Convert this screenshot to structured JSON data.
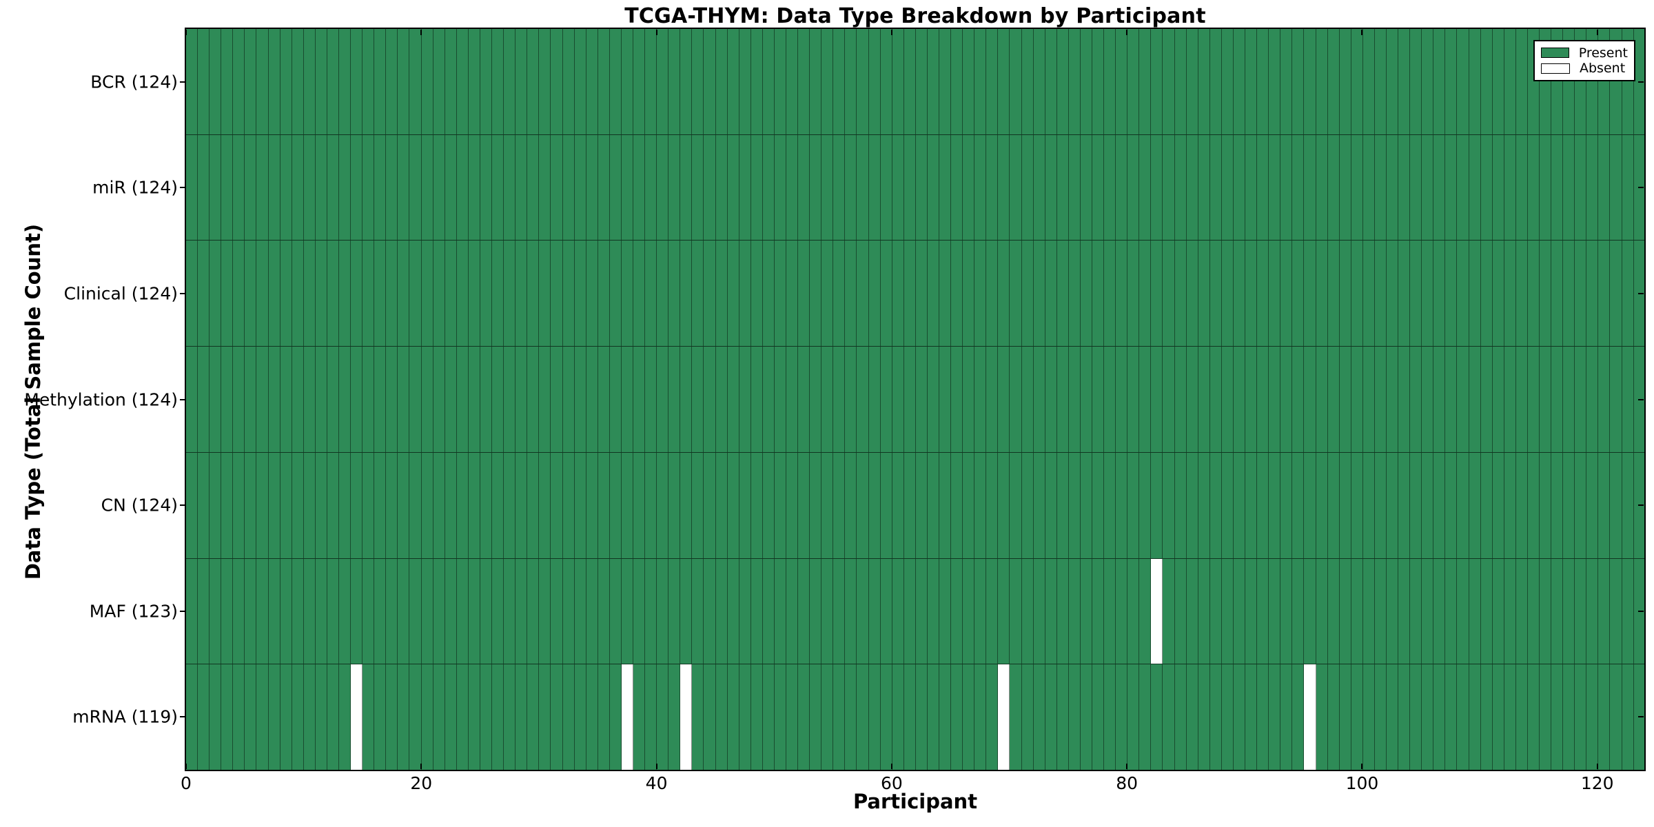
{
  "chart_data": {
    "type": "heatmap",
    "title": "TCGA-THYM: Data Type Breakdown by Participant",
    "xlabel": "Participant",
    "ylabel": "Data Type (Total Sample Count)",
    "x_ticks": [
      0,
      20,
      40,
      60,
      80,
      100,
      120
    ],
    "x_range": [
      0,
      124
    ],
    "participants": 124,
    "present_color": "#2E8B57",
    "absent_color": "#ffffff",
    "grid": "cell-borders",
    "legend_position": "upper-right",
    "rows": [
      {
        "label": "BCR (124)",
        "name": "BCR",
        "total": 124,
        "absent_participants": []
      },
      {
        "label": "miR (124)",
        "name": "miR",
        "total": 124,
        "absent_participants": []
      },
      {
        "label": "Clinical (124)",
        "name": "Clinical",
        "total": 124,
        "absent_participants": []
      },
      {
        "label": "Methylation (124)",
        "name": "Methylation",
        "total": 124,
        "absent_participants": []
      },
      {
        "label": "CN (124)",
        "name": "CN",
        "total": 124,
        "absent_participants": []
      },
      {
        "label": "MAF (123)",
        "name": "MAF",
        "total": 123,
        "absent_participants": [
          82
        ]
      },
      {
        "label": "mRNA (119)",
        "name": "mRNA",
        "total": 119,
        "absent_participants": [
          14,
          37,
          42,
          69,
          95
        ]
      }
    ],
    "legend": [
      {
        "label": "Present",
        "color": "#2E8B57"
      },
      {
        "label": "Absent",
        "color": "#ffffff"
      }
    ]
  }
}
